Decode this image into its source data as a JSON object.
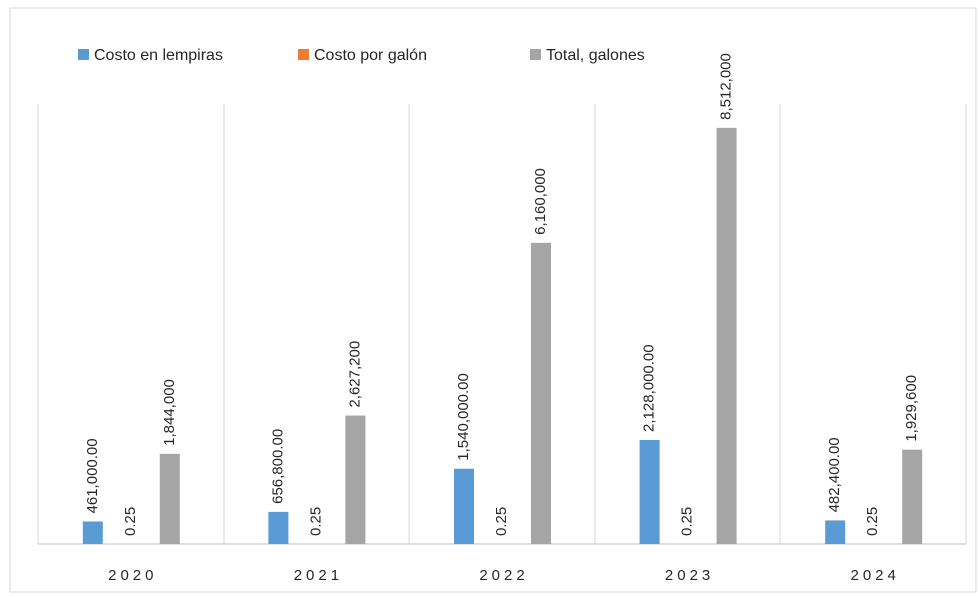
{
  "chart_data": {
    "type": "bar",
    "categories": [
      "2020",
      "2021",
      "2022",
      "2023",
      "2024"
    ],
    "series": [
      {
        "name": "Costo en lempiras",
        "color": "#5b9bd5",
        "values": [
          461000,
          656800,
          1540000,
          2128000,
          482400
        ],
        "value_labels": [
          "461,000.00",
          "656,800.00",
          "1,540,000.00",
          "2,128,000.00",
          "482,400.00"
        ]
      },
      {
        "name": "Costo por galón",
        "color": "#ed7d31",
        "values": [
          0.25,
          0.25,
          0.25,
          0.25,
          0.25
        ]
      },
      {
        "name": "Total, galones",
        "color": "#a5a5a5",
        "values": [
          1844000,
          2627200,
          6160000,
          8512000,
          1929600
        ],
        "value_labels": [
          "1,844,000",
          "2,627,200",
          "6,160,000",
          "8,512,000",
          "1,929,600"
        ]
      }
    ],
    "ylim": [
      0,
      9000000
    ],
    "legend": "top"
  }
}
